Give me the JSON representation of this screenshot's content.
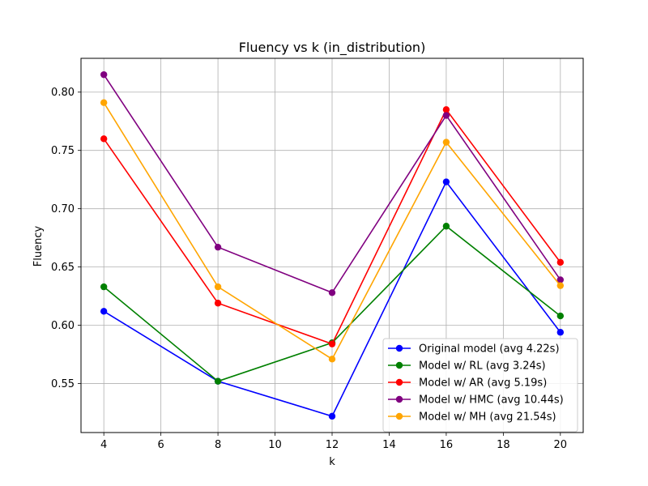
{
  "chart_data": {
    "type": "line",
    "title": "Fluency vs k (in_distribution)",
    "xlabel": "k",
    "ylabel": "Fluency",
    "xlim": [
      3.2,
      20.8
    ],
    "ylim": [
      0.508,
      0.829
    ],
    "x_ticks": [
      4,
      6,
      8,
      10,
      12,
      14,
      16,
      18,
      20
    ],
    "x_tick_labels": [
      "4",
      "6",
      "8",
      "10",
      "12",
      "14",
      "16",
      "18",
      "20"
    ],
    "y_ticks": [
      0.55,
      0.6,
      0.65,
      0.7,
      0.75,
      0.8
    ],
    "y_tick_labels": [
      "0.55",
      "0.60",
      "0.65",
      "0.70",
      "0.75",
      "0.80"
    ],
    "grid": true,
    "legend_position": "bottom-right",
    "x": [
      4,
      8,
      12,
      16,
      20
    ],
    "series": [
      {
        "name": "Original model (avg 4.22s)",
        "color": "#0000ff",
        "values": [
          0.612,
          0.552,
          0.522,
          0.723,
          0.594
        ]
      },
      {
        "name": "Model w/ RL (avg 3.24s)",
        "color": "#008000",
        "values": [
          0.633,
          0.552,
          0.585,
          0.685,
          0.608
        ]
      },
      {
        "name": "Model w/ AR (avg 5.19s)",
        "color": "#ff0000",
        "values": [
          0.76,
          0.619,
          0.584,
          0.785,
          0.654
        ]
      },
      {
        "name": "Model w/ HMC (avg 10.44s)",
        "color": "#800080",
        "values": [
          0.815,
          0.667,
          0.628,
          0.78,
          0.639
        ]
      },
      {
        "name": "Model w/ MH (avg 21.54s)",
        "color": "#ffa500",
        "values": [
          0.791,
          0.633,
          0.571,
          0.757,
          0.634
        ]
      }
    ]
  }
}
